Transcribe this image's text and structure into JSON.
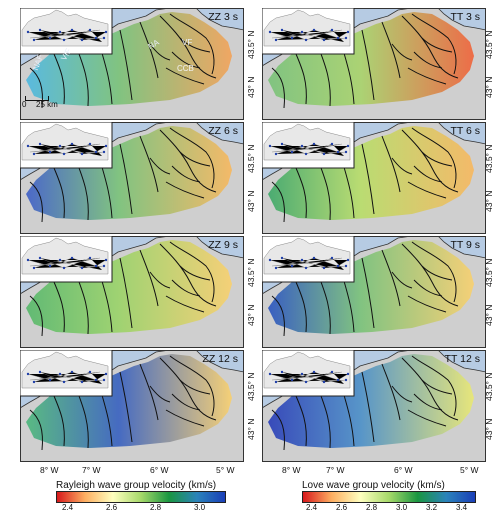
{
  "panels": [
    {
      "id": "zz3",
      "label": "ZZ 3 s"
    },
    {
      "id": "tt3",
      "label": "TT 3 s"
    },
    {
      "id": "zz6",
      "label": "ZZ 6 s"
    },
    {
      "id": "tt6",
      "label": "TT 6 s"
    },
    {
      "id": "zz9",
      "label": "ZZ 9 s"
    },
    {
      "id": "tt9",
      "label": "TT 9 s"
    },
    {
      "id": "zz12",
      "label": "ZZ 12 s"
    },
    {
      "id": "tt12",
      "label": "TT 12 s"
    }
  ],
  "lat_labels": {
    "north": "43.5° N",
    "south": "43° N"
  },
  "lon_labels": [
    "8° W",
    "7° W",
    "6° W",
    "5° W"
  ],
  "map_annotations": {
    "naf": "NAF",
    "vif": "VIF",
    "na": "NA",
    "vf": "VF",
    "ccb": "CCB"
  },
  "scale_bar": {
    "zero": "0",
    "distance": "25 km"
  },
  "rayleigh_colorbar": {
    "title": "Rayleigh wave group velocity (km/s)",
    "ticks": [
      "2.4",
      "2.6",
      "2.8",
      "3.0"
    ],
    "colors": [
      "#d7191c",
      "#fdae61",
      "#ffffbf",
      "#a6d96a",
      "#1a9641",
      "#2b83ba",
      "#1a3fb8"
    ]
  },
  "love_colorbar": {
    "title": "Love wave group velocity (km/s)",
    "ticks": [
      "2.4",
      "2.6",
      "2.8",
      "3.0",
      "3.2",
      "3.4"
    ],
    "colors": [
      "#d7191c",
      "#fdae61",
      "#ffffbf",
      "#a6d96a",
      "#1a9641",
      "#2b83ba",
      "#1a3fb8"
    ]
  }
}
